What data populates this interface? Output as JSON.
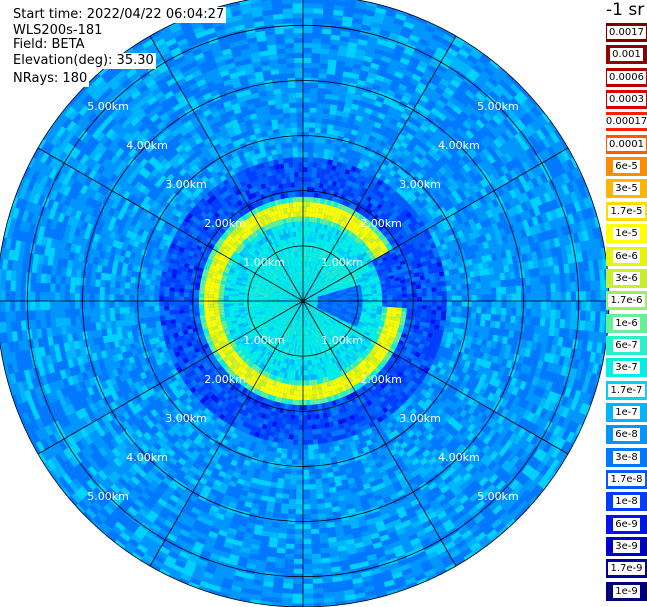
{
  "header": {
    "start_time": "Start time: 2022/04/22 06:04:27",
    "instrument": "WLS200s-181",
    "field": "Field: BETA",
    "elevation": "Elevation(deg): 35.30",
    "nrays": "NRays: 180"
  },
  "colorbar": {
    "unit": "-1 sr",
    "levels": [
      {
        "label": "0.0017",
        "color": "#7a0000"
      },
      {
        "label": "0.001",
        "color": "#900000"
      },
      {
        "label": "0.0006",
        "color": "#b40000"
      },
      {
        "label": "0.0003",
        "color": "#dc0000"
      },
      {
        "label": "0.00017",
        "color": "#ff1e00"
      },
      {
        "label": "0.0001",
        "color": "#ff5a00"
      },
      {
        "label": "6e-5",
        "color": "#ff8c00"
      },
      {
        "label": "3e-5",
        "color": "#ffb400"
      },
      {
        "label": "1.7e-5",
        "color": "#ffdc00"
      },
      {
        "label": "1e-5",
        "color": "#ffff00"
      },
      {
        "label": "6e-6",
        "color": "#e6f500"
      },
      {
        "label": "3e-6",
        "color": "#c8f028"
      },
      {
        "label": "1.7e-6",
        "color": "#96f064"
      },
      {
        "label": "1e-6",
        "color": "#64f096"
      },
      {
        "label": "6e-7",
        "color": "#28f0c8"
      },
      {
        "label": "3e-7",
        "color": "#00f0e6"
      },
      {
        "label": "1.7e-7",
        "color": "#00d2ff"
      },
      {
        "label": "1e-7",
        "color": "#00b4ff"
      },
      {
        "label": "6e-8",
        "color": "#0096ff"
      },
      {
        "label": "3e-8",
        "color": "#0078ff"
      },
      {
        "label": "1.7e-8",
        "color": "#005aff"
      },
      {
        "label": "1e-8",
        "color": "#003cff"
      },
      {
        "label": "6e-9",
        "color": "#0014f0"
      },
      {
        "label": "3e-9",
        "color": "#0000c8"
      },
      {
        "label": "1.7e-9",
        "color": "#00009b"
      },
      {
        "label": "1e-9",
        "color": "#000078"
      }
    ]
  },
  "chart_data": {
    "type": "heatmap",
    "projection": "polar PPI scan",
    "field": "BETA",
    "range_rings_km": [
      1.0,
      2.0,
      3.0,
      4.0,
      5.0
    ],
    "ring_labels": [
      "1.00km",
      "2.00km",
      "3.00km",
      "4.00km",
      "5.00km"
    ],
    "max_range_km": 5.55,
    "radial_spokes_deg": [
      0,
      30,
      60,
      90,
      120,
      150,
      180,
      210,
      240,
      270,
      300,
      330
    ],
    "nrays": 180,
    "features": {
      "background_range": [
        "1e-8",
        "1e-7"
      ],
      "inner_region_km": [
        0.0,
        1.1
      ],
      "inner_region_value": "3e-7",
      "aerosol_ring_km": [
        1.4,
        1.9
      ],
      "aerosol_ring_value": "1e-5"
    }
  }
}
